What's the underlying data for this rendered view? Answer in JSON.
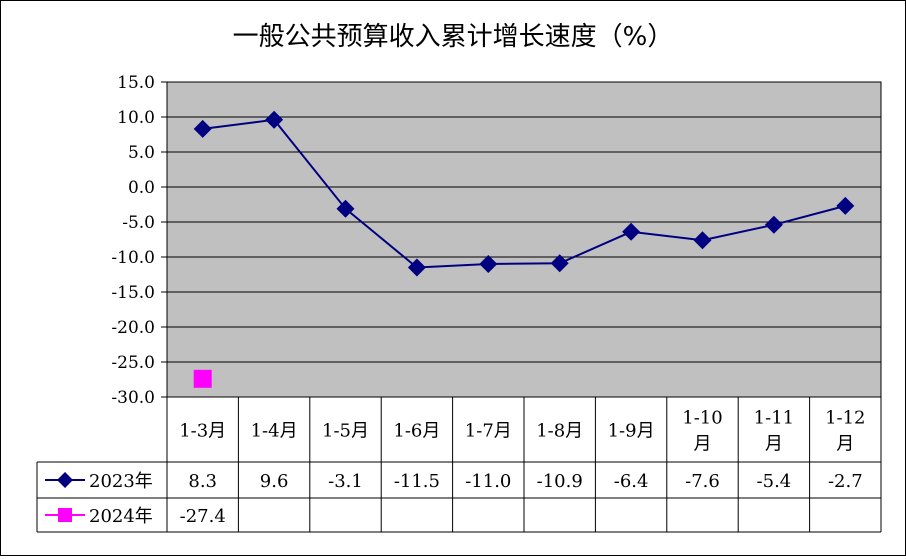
{
  "chart_data": {
    "type": "line",
    "title": "一般公共预算收入累计增长速度（%）",
    "categories": [
      "1-3月",
      "1-4月",
      "1-5月",
      "1-6月",
      "1-7月",
      "1-8月",
      "1-9月",
      "1-10月",
      "1-11月",
      "1-12月"
    ],
    "category_lines": [
      [
        "1-3月"
      ],
      [
        "1-4月"
      ],
      [
        "1-5月"
      ],
      [
        "1-6月"
      ],
      [
        "1-7月"
      ],
      [
        "1-8月"
      ],
      [
        "1-9月"
      ],
      [
        "1-10",
        "月"
      ],
      [
        "1-11",
        "月"
      ],
      [
        "1-12",
        "月"
      ]
    ],
    "y_ticks": [
      "15.0",
      "10.0",
      "5.0",
      "0.0",
      "-5.0",
      "-10.0",
      "-15.0",
      "-20.0",
      "-25.0",
      "-30.0"
    ],
    "ylim": [
      -30,
      15
    ],
    "y_step": 5,
    "grid": true,
    "legend": "bottom data table",
    "series": [
      {
        "name": "2023年",
        "values": [
          8.3,
          9.6,
          -3.1,
          -11.5,
          -11.0,
          -10.9,
          -6.4,
          -7.6,
          -5.4,
          -2.7
        ],
        "labels": [
          "8.3",
          "9.6",
          "-3.1",
          "-11.5",
          "-11.0",
          "-10.9",
          "-6.4",
          "-7.6",
          "-5.4",
          "-2.7"
        ],
        "color": "#000080",
        "marker": "diamond"
      },
      {
        "name": "2024年",
        "values": [
          -27.4,
          null,
          null,
          null,
          null,
          null,
          null,
          null,
          null,
          null
        ],
        "labels": [
          "-27.4",
          "",
          "",
          "",
          "",
          "",
          "",
          "",
          "",
          ""
        ],
        "color": "#ff00ff",
        "marker": "square"
      }
    ],
    "colors": {
      "plot_bg": "#c0c0c0",
      "grid": "#000000"
    }
  }
}
